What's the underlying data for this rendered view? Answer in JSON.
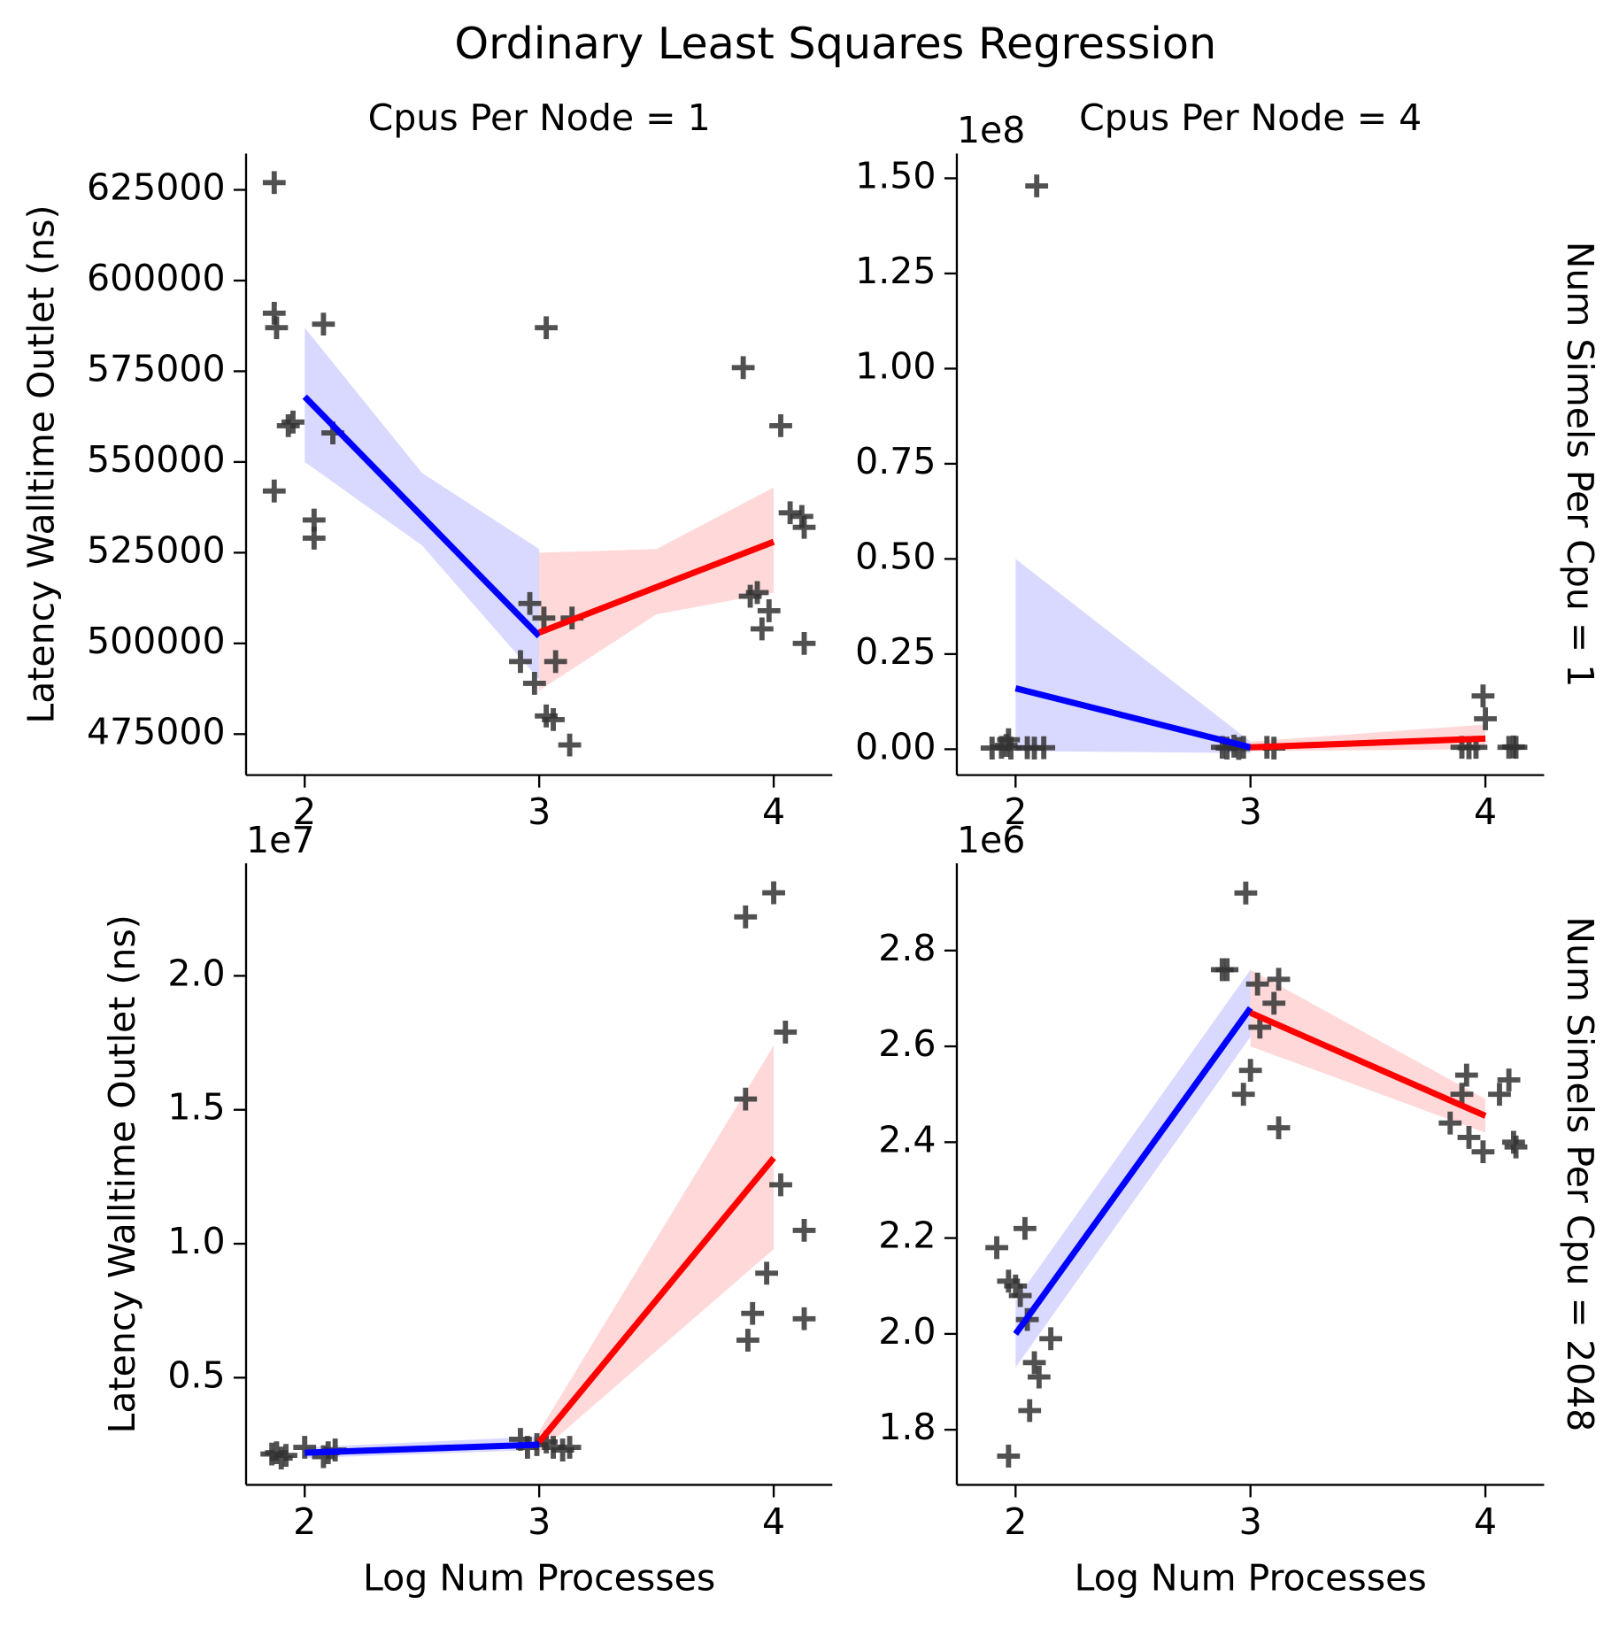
{
  "title": "Ordinary Least Squares Regression",
  "chart_data": [
    {
      "type": "scatter",
      "title": "Cpus Per Node = 1",
      "ylabel": "Latency Walltime Outlet (ns)",
      "marker_color": "#333333",
      "x": [
        1.87,
        1.87,
        1.88,
        1.87,
        1.93,
        1.95,
        2.04,
        2.04,
        2.08,
        2.12,
        2.92,
        2.96,
        2.98,
        3.02,
        3.03,
        3.03,
        3.06,
        3.07,
        3.13,
        3.14,
        3.87,
        3.9,
        3.93,
        3.95,
        3.98,
        4.03,
        4.07,
        4.12,
        4.13,
        4.13
      ],
      "y": [
        627000,
        591000,
        587000,
        542000,
        560000,
        561000,
        534000,
        529000,
        588000,
        558000,
        495000,
        511000,
        489000,
        507000,
        587000,
        480000,
        479000,
        495000,
        472000,
        507000,
        576000,
        513000,
        514000,
        504000,
        509000,
        560000,
        536000,
        535000,
        532000,
        500000
      ],
      "fits": [
        {
          "color": "blue",
          "x": [
            2,
            2.5,
            3
          ],
          "values": [
            568000,
            535000,
            502000
          ],
          "lower": [
            550000,
            527000,
            490000
          ],
          "upper": [
            587000,
            547000,
            526000
          ]
        },
        {
          "color": "red",
          "x": [
            3,
            3.5,
            4
          ],
          "values": [
            503000,
            515500,
            528000
          ],
          "lower": [
            487000,
            508000,
            514000
          ],
          "upper": [
            525000,
            526000,
            543000
          ]
        }
      ],
      "xlim": [
        1.75,
        4.25
      ],
      "ylim": [
        463700,
        635000
      ],
      "xticks": [
        2,
        3,
        4
      ],
      "yticks": [
        475000,
        500000,
        525000,
        550000,
        575000,
        600000,
        625000
      ]
    },
    {
      "type": "scatter",
      "title": "Cpus Per Node = 4",
      "row_label": "Num Simels Per Cpu = 1",
      "offset_label": "1e8",
      "marker_color": "#333333",
      "x": [
        1.9,
        1.94,
        1.96,
        1.97,
        1.98,
        2.05,
        2.08,
        2.09,
        2.12,
        2.88,
        2.9,
        2.93,
        2.95,
        2.97,
        3.07,
        3.1,
        3.9,
        3.93,
        3.96,
        3.99,
        4.0,
        4.1,
        4.12,
        4.13
      ],
      "y": [
        0.003,
        0.005,
        0.01,
        0.025,
        0.003,
        0.004,
        0.003,
        1.48,
        0.004,
        0.005,
        0.003,
        0.008,
        0.002,
        0.005,
        0.005,
        0.003,
        0.005,
        0.004,
        0.005,
        0.14,
        0.08,
        0.005,
        0.006,
        0.005
      ],
      "fits": [
        {
          "color": "blue",
          "x": [
            2,
            3
          ],
          "values": [
            0.16,
            0.005
          ],
          "lower": [
            -0.005,
            -0.01
          ],
          "upper": [
            0.5,
            0.02
          ]
        },
        {
          "color": "red",
          "x": [
            3,
            4
          ],
          "values": [
            0.005,
            0.028
          ],
          "lower": [
            -0.005,
            0.0
          ],
          "upper": [
            0.02,
            0.065
          ]
        }
      ],
      "xlim": [
        1.75,
        4.25
      ],
      "ylim": [
        -0.068,
        1.565
      ],
      "xticks": [
        2,
        3,
        4
      ],
      "yticks": [
        {
          "value": 0,
          "label": "0.00"
        },
        {
          "value": 0.25,
          "label": "0.25"
        },
        {
          "value": 0.5,
          "label": "0.50"
        },
        {
          "value": 0.75,
          "label": "0.75"
        },
        {
          "value": 1,
          "label": "1.00"
        },
        {
          "value": 1.25,
          "label": "1.25"
        },
        {
          "value": 1.5,
          "label": "1.50"
        }
      ]
    },
    {
      "type": "scatter",
      "ylabel": "Latency Walltime Outlet (ns)",
      "xlabel": "Log Num Processes",
      "offset_label": "1e7",
      "marker_color": "#333333",
      "x": [
        1.86,
        1.88,
        1.9,
        1.92,
        2.0,
        2.08,
        2.1,
        2.13,
        2.92,
        2.95,
        2.99,
        3.03,
        3.06,
        3.1,
        3.13,
        3.89,
        3.91,
        3.88,
        3.88,
        4.0,
        3.97,
        4.03,
        4.05,
        4.13,
        4.13
      ],
      "y": [
        0.215,
        0.22,
        0.2,
        0.21,
        0.24,
        0.205,
        0.22,
        0.23,
        0.27,
        0.24,
        0.25,
        0.26,
        0.24,
        0.23,
        0.24,
        0.64,
        0.74,
        1.54,
        2.22,
        2.31,
        0.89,
        1.22,
        1.79,
        0.72,
        1.05
      ],
      "fits": [
        {
          "color": "blue",
          "x": [
            2,
            3
          ],
          "values": [
            0.22,
            0.25
          ],
          "lower": [
            0.2,
            0.23
          ],
          "upper": [
            0.24,
            0.28
          ]
        },
        {
          "color": "red",
          "x": [
            3,
            4
          ],
          "values": [
            0.26,
            1.32
          ],
          "lower": [
            0.22,
            0.98
          ],
          "upper": [
            0.3,
            1.74
          ]
        }
      ],
      "xlim": [
        1.75,
        4.25
      ],
      "ylim": [
        0.1,
        2.42
      ],
      "xticks": [
        2,
        3,
        4
      ],
      "yticks": [
        0.5,
        {
          "value": 1,
          "label": "1.0"
        },
        1.5,
        {
          "value": 2,
          "label": "2.0"
        }
      ]
    },
    {
      "type": "scatter",
      "xlabel": "Log Num Processes",
      "row_label": "Num Simels Per Cpu = 2048",
      "offset_label": "1e6",
      "marker_color": "#333333",
      "x": [
        1.92,
        1.97,
        2.0,
        2.02,
        2.04,
        2.05,
        2.08,
        2.1,
        2.15,
        2.06,
        1.97,
        2.88,
        2.9,
        2.97,
        2.98,
        3.0,
        3.03,
        3.04,
        3.1,
        3.12,
        3.12,
        3.85,
        3.9,
        3.92,
        3.93,
        3.99,
        4.06,
        4.1,
        4.13,
        4.12
      ],
      "y": [
        2.18,
        2.11,
        2.1,
        2.08,
        2.22,
        2.03,
        1.94,
        1.91,
        1.99,
        1.84,
        1.745,
        2.76,
        2.76,
        2.5,
        2.92,
        2.55,
        2.73,
        2.64,
        2.69,
        2.74,
        2.43,
        2.44,
        2.5,
        2.54,
        2.41,
        2.38,
        2.5,
        2.53,
        2.39,
        2.4
      ],
      "fits": [
        {
          "color": "blue",
          "x": [
            2,
            3
          ],
          "values": [
            2.0,
            2.68
          ],
          "lower": [
            1.93,
            2.62
          ],
          "upper": [
            2.07,
            2.76
          ]
        },
        {
          "color": "red",
          "x": [
            3,
            4
          ],
          "values": [
            2.67,
            2.455
          ],
          "lower": [
            2.6,
            2.42
          ],
          "upper": [
            2.76,
            2.49
          ]
        }
      ],
      "xlim": [
        1.75,
        4.25
      ],
      "ylim": [
        1.685,
        2.982
      ],
      "xticks": [
        2,
        3,
        4
      ],
      "yticks": [
        1.8,
        {
          "value": 2,
          "label": "2.0"
        },
        2.2,
        2.4,
        2.6,
        2.8
      ]
    }
  ]
}
